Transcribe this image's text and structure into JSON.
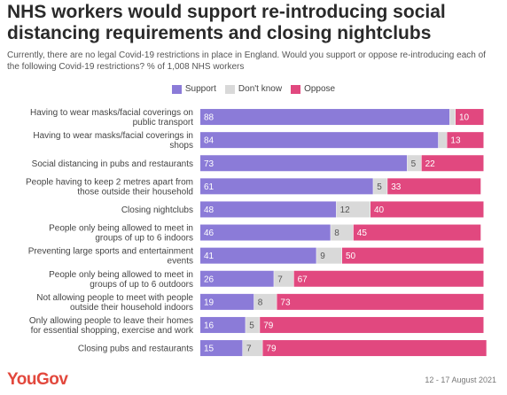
{
  "title": "NHS workers would support re-introducing social distancing requirements and closing nightclubs",
  "subtitle": "Currently, there are no legal Covid-19 restrictions in place in England. Would you support or oppose re-introducing each of the following Covid-19 restrictions? % of 1,008 NHS workers",
  "source": "YouGov",
  "date": "12 - 17 August 2021",
  "chart_data": {
    "type": "bar",
    "orientation": "horizontal",
    "stacked": true,
    "xlim": [
      0,
      100
    ],
    "legend_position": "top-center",
    "categories": [
      [
        "Having to wear masks/facial coverings on",
        "public transport"
      ],
      [
        "Having to wear masks/facial coverings in",
        "shops"
      ],
      [
        "Social distancing in pubs and restaurants"
      ],
      [
        "People having to keep 2 metres apart from",
        "those outside their household"
      ],
      [
        "Closing nightclubs"
      ],
      [
        "People only being allowed to meet in",
        "groups of up to 6 indoors"
      ],
      [
        "Preventing large sports and entertainment",
        "events"
      ],
      [
        "People only being allowed to meet in",
        "groups of up to 6 outdoors"
      ],
      [
        "Not allowing people to meet with people",
        "outside their household indoors"
      ],
      [
        "Only allowing people to leave their homes",
        "for essential shopping, exercise and work"
      ],
      [
        "Closing pubs and restaurants"
      ]
    ],
    "series": [
      {
        "name": "Support",
        "color": "#8b7bd8",
        "values": [
          88,
          84,
          73,
          61,
          48,
          46,
          41,
          26,
          19,
          16,
          15
        ]
      },
      {
        "name": "Don't know",
        "color": "#d9d9d9",
        "values": [
          2,
          3,
          5,
          5,
          12,
          8,
          9,
          7,
          8,
          5,
          7
        ]
      },
      {
        "name": "Oppose",
        "color": "#e1487f",
        "values": [
          10,
          13,
          22,
          33,
          40,
          45,
          50,
          67,
          73,
          79,
          79
        ]
      }
    ],
    "value_label_threshold": 5
  }
}
